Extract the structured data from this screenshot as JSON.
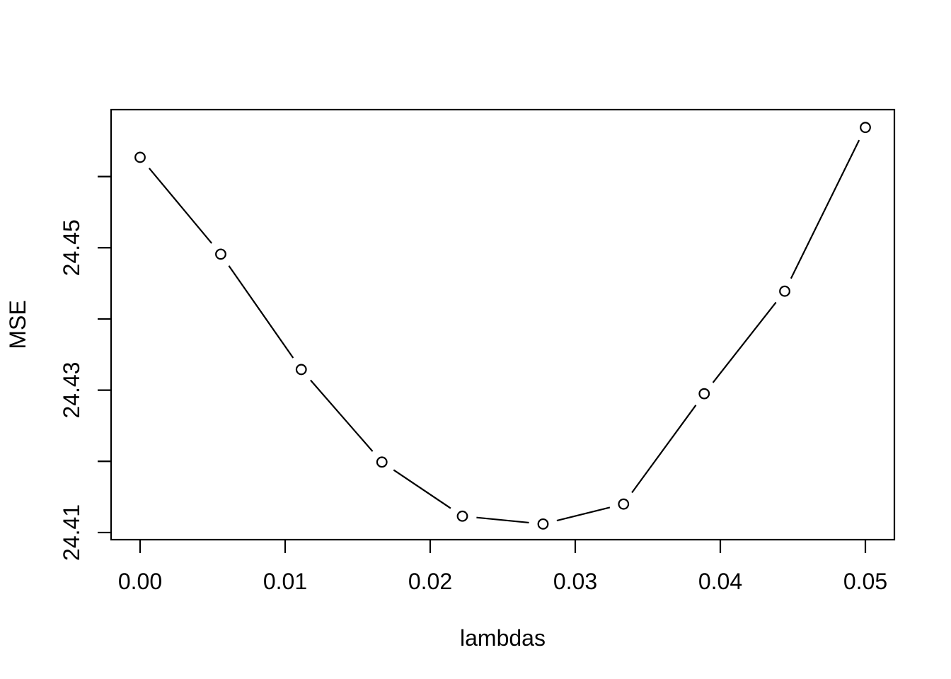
{
  "chart_data": {
    "type": "line",
    "title": "",
    "xlabel": "lambdas",
    "ylabel": "MSE",
    "x": [
      0,
      0.00556,
      0.01111,
      0.01667,
      0.02222,
      0.02778,
      0.03333,
      0.03889,
      0.04444,
      0.05
    ],
    "series": [
      {
        "name": "MSE",
        "values": [
          24.4627,
          24.4491,
          24.4329,
          24.4199,
          24.4123,
          24.4112,
          24.414,
          24.4295,
          24.4439,
          24.4669
        ]
      }
    ],
    "xlim": [
      -0.002,
      0.052
    ],
    "ylim": [
      24.409,
      24.4694
    ],
    "x_ticks": {
      "values": [
        0,
        0.01,
        0.02,
        0.03,
        0.04,
        0.05
      ],
      "labels": [
        "0.00",
        "0.01",
        "0.02",
        "0.03",
        "0.04",
        "0.05"
      ]
    },
    "y_ticks": {
      "values": [
        24.41,
        24.42,
        24.43,
        24.44,
        24.45,
        24.46
      ],
      "labels": [
        "24.41",
        "",
        "24.43",
        "",
        "24.45",
        ""
      ]
    },
    "grid": false,
    "legend": null,
    "marker": "open-circle",
    "line_style": "solid-with-gaps-at-points",
    "colors": {
      "foreground": "#000000",
      "background": "#ffffff",
      "marker_fill": "#ffffff"
    }
  }
}
